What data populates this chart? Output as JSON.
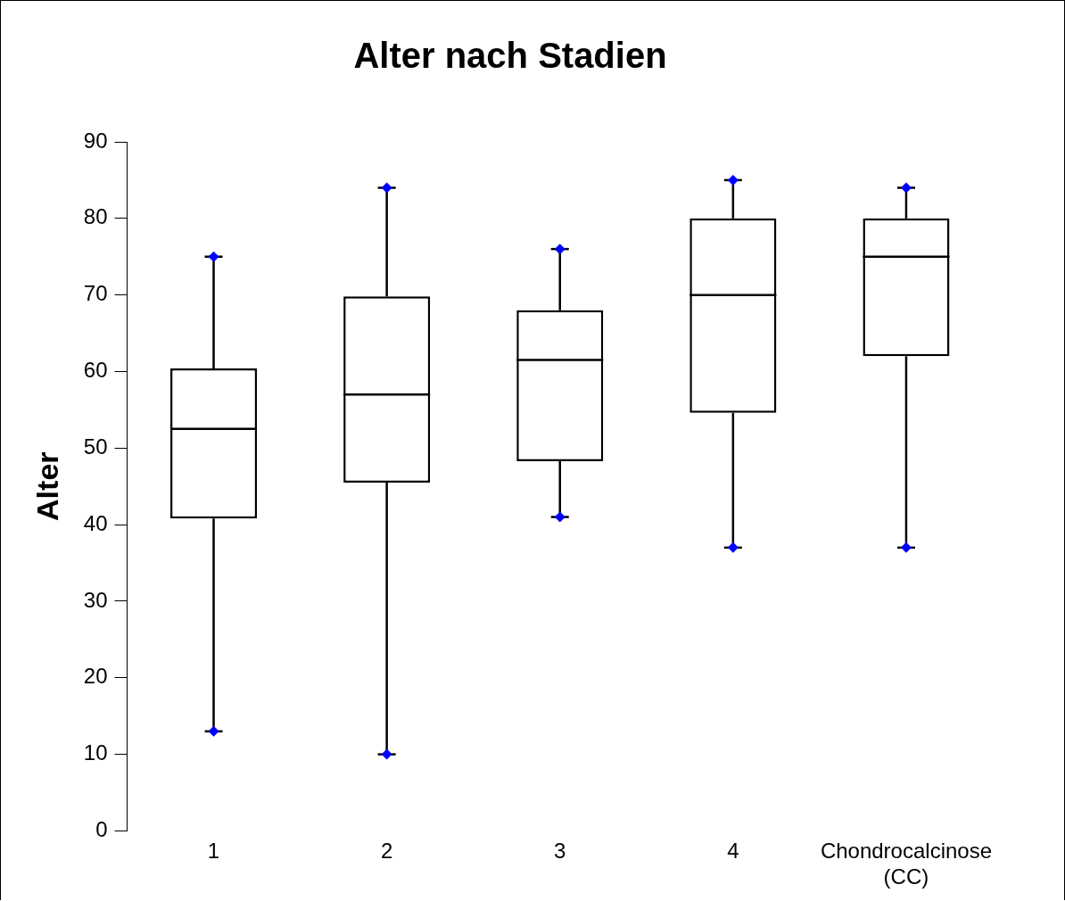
{
  "chart_data": {
    "type": "box",
    "title": "Alter nach Stadien",
    "ylabel": "Alter",
    "categories": [
      "1",
      "2",
      "3",
      "4",
      "Chondrocalcinose (CC)"
    ],
    "boxes": [
      {
        "low": 13,
        "q1": 40.8,
        "median": 52.5,
        "q3": 60.4,
        "high": 75
      },
      {
        "low": 10,
        "q1": 45.5,
        "median": 57,
        "q3": 69.8,
        "high": 84
      },
      {
        "low": 41,
        "q1": 48.3,
        "median": 61.5,
        "q3": 68,
        "high": 76
      },
      {
        "low": 37,
        "q1": 54.6,
        "median": 70,
        "q3": 80,
        "high": 85
      },
      {
        "low": 37,
        "q1": 62,
        "median": 75,
        "q3": 80,
        "high": 84
      }
    ],
    "series": [
      {
        "type": "scatter",
        "color": "#0000ff",
        "x": [
          "1",
          "2",
          "3",
          "4",
          "Chondrocalcinose (CC)",
          "1",
          "2",
          "3",
          "4",
          "Chondrocalcinose (CC)"
        ],
        "values": [
          75,
          84,
          76,
          85,
          84,
          13,
          10,
          41,
          37,
          37
        ]
      }
    ],
    "color": "#000000",
    "marker": "diamond",
    "ylim": [
      0,
      90
    ],
    "yticks": [
      0,
      10,
      20,
      30,
      40,
      50,
      60,
      70,
      80,
      90
    ],
    "grid": false,
    "legend": false
  }
}
